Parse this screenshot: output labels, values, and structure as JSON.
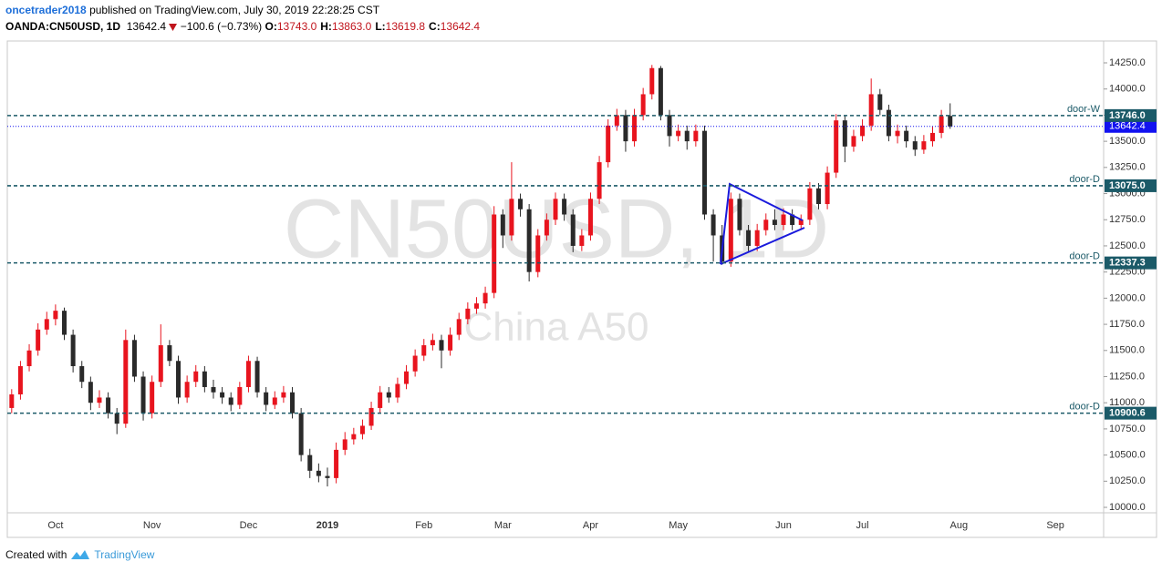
{
  "header": {
    "author": "oncetrader2018",
    "published": "published on TradingView.com, July 30, 2019 22:28:25 CST",
    "symbol": "OANDA:CN50USD, 1D",
    "last": "13642.4",
    "change": "−100.6 (−0.73%)",
    "ohlc": [
      {
        "label": "O:",
        "value": "13743.0"
      },
      {
        "label": "H:",
        "value": "13863.0"
      },
      {
        "label": "L:",
        "value": "13619.8"
      },
      {
        "label": "C:",
        "value": "13642.4"
      }
    ]
  },
  "footer": {
    "prefix": "Created with",
    "brand": "TradingView"
  },
  "chart_data": {
    "type": "candlestick",
    "watermark": "CN50USD, 1D",
    "description": "China A50",
    "categories": [
      null,
      null,
      null,
      null,
      null,
      "Oct",
      null,
      null,
      null,
      null,
      null,
      null,
      null,
      null,
      null,
      null,
      "Nov",
      null,
      null,
      null,
      null,
      null,
      null,
      null,
      null,
      null,
      null,
      "Dec",
      null,
      null,
      null,
      null,
      null,
      null,
      null,
      null,
      "2019",
      null,
      null,
      null,
      null,
      null,
      null,
      null,
      null,
      null,
      null,
      "Feb",
      null,
      null,
      null,
      null,
      null,
      null,
      null,
      null,
      "Mar",
      null,
      null,
      null,
      null,
      null,
      null,
      null,
      null,
      null,
      "Apr",
      null,
      null,
      null,
      null,
      null,
      null,
      null,
      null,
      null,
      "May",
      null,
      null,
      null,
      null,
      null,
      null,
      null,
      null,
      null,
      null,
      null,
      "Jun",
      null,
      null,
      null,
      null,
      null,
      null,
      null,
      null,
      "Jul",
      null,
      null,
      null,
      null,
      null,
      null,
      null,
      null,
      null,
      null,
      "Aug",
      null,
      null,
      null,
      null,
      null,
      null,
      null,
      null,
      null,
      null,
      "Sep",
      null,
      null,
      null,
      null,
      null
    ],
    "open": [
      10950,
      11080,
      11350,
      11500,
      11700,
      11800,
      11880,
      11650,
      11350,
      11200,
      11000,
      11050,
      10900,
      10800,
      11600,
      11250,
      10900,
      11200,
      11550,
      11400,
      11050,
      11200,
      11300,
      11150,
      11100,
      11050,
      10980,
      11150,
      11400,
      11100,
      10980,
      11050,
      11100,
      10900,
      10500,
      10350,
      10300,
      10280,
      10550,
      10650,
      10700,
      10780,
      10950,
      11100,
      11050,
      11180,
      11300,
      11450,
      11550,
      11600,
      11500,
      11650,
      11800,
      11900,
      11950,
      12050,
      12800,
      12600,
      12950,
      12850,
      12250,
      12600,
      12750,
      12950,
      12800,
      12500,
      12600,
      12950,
      13300,
      13650,
      13750,
      13500,
      13750,
      13950,
      14200,
      13750,
      13550,
      13600,
      13500,
      13600,
      12800,
      12600,
      12350,
      12950,
      12650,
      12500,
      12650,
      12750,
      12700,
      12800,
      12700,
      12750,
      13050,
      12900,
      13200,
      13700,
      13450,
      13550,
      13650,
      13950,
      13800,
      13550,
      13600,
      13500,
      13420,
      13500,
      13580,
      13743,
      null,
      null,
      null,
      null,
      null,
      null,
      null,
      null,
      null,
      null,
      null,
      null,
      null,
      null,
      null,
      null,
      null
    ],
    "high": [
      11130,
      11400,
      11560,
      11760,
      11870,
      11940,
      11910,
      11700,
      11400,
      11250,
      11120,
      11100,
      10950,
      11700,
      11650,
      11300,
      11260,
      11750,
      11600,
      11450,
      11260,
      11360,
      11350,
      11220,
      11150,
      11100,
      11200,
      11450,
      11440,
      11150,
      11110,
      11160,
      11150,
      10950,
      10560,
      10420,
      10380,
      10620,
      10720,
      10760,
      10840,
      11010,
      11160,
      11150,
      11240,
      11360,
      11510,
      11610,
      11660,
      11650,
      11720,
      11860,
      11960,
      12010,
      12110,
      12880,
      12850,
      13300,
      13000,
      12900,
      12660,
      12810,
      13010,
      13000,
      12850,
      12660,
      13010,
      13360,
      13710,
      13810,
      13800,
      13810,
      14010,
      14230,
      14220,
      13800,
      13660,
      13650,
      13660,
      13650,
      12850,
      12700,
      13010,
      13000,
      12700,
      12710,
      12810,
      12850,
      12860,
      12850,
      12800,
      13110,
      13100,
      13260,
      13760,
      13750,
      13610,
      13710,
      14100,
      14000,
      13850,
      13660,
      13650,
      13550,
      13560,
      13640,
      13800,
      13863,
      null,
      null,
      null,
      null,
      null,
      null,
      null,
      null,
      null,
      null,
      null,
      null,
      null,
      null,
      null,
      null,
      null
    ],
    "low": [
      10900,
      11030,
      11300,
      11450,
      11650,
      11740,
      11600,
      11290,
      11140,
      10930,
      10950,
      10850,
      10700,
      10760,
      11200,
      10830,
      10850,
      11150,
      11350,
      10990,
      11000,
      11150,
      11100,
      11040,
      10990,
      10920,
      10940,
      11100,
      11050,
      10920,
      10940,
      11000,
      10850,
      10440,
      10280,
      10240,
      10200,
      10230,
      10500,
      10600,
      10650,
      10740,
      10900,
      11000,
      11000,
      11130,
      11250,
      11400,
      11500,
      11330,
      11450,
      11600,
      11750,
      11850,
      11900,
      12000,
      12480,
      12550,
      12780,
      12160,
      12200,
      12550,
      12700,
      12740,
      12440,
      12450,
      12550,
      12900,
      13250,
      13600,
      13400,
      13450,
      13700,
      13900,
      13700,
      13450,
      13500,
      13420,
      13450,
      12750,
      12350,
      12320,
      12300,
      12600,
      12450,
      12450,
      12600,
      12650,
      12650,
      12650,
      12650,
      12700,
      12850,
      12850,
      13150,
      13300,
      13400,
      13500,
      13600,
      13750,
      13500,
      13480,
      13440,
      13360,
      13380,
      13450,
      13530,
      13619.8,
      null,
      null,
      null,
      null,
      null,
      null,
      null,
      null,
      null,
      null,
      null,
      null,
      null,
      null,
      null,
      null,
      null
    ],
    "close": [
      11080,
      11350,
      11500,
      11700,
      11800,
      11880,
      11650,
      11350,
      11200,
      11000,
      11050,
      10900,
      10800,
      11600,
      11250,
      10900,
      11200,
      11550,
      11400,
      11050,
      11200,
      11300,
      11150,
      11100,
      11050,
      10980,
      11150,
      11400,
      11100,
      10980,
      11050,
      11100,
      10900,
      10500,
      10350,
      10300,
      10280,
      10550,
      10650,
      10700,
      10780,
      10950,
      11100,
      11050,
      11180,
      11300,
      11450,
      11550,
      11600,
      11500,
      11650,
      11800,
      11900,
      11950,
      12050,
      12800,
      12600,
      12950,
      12850,
      12250,
      12600,
      12750,
      12950,
      12800,
      12500,
      12600,
      12950,
      13300,
      13650,
      13750,
      13500,
      13750,
      13950,
      14200,
      13750,
      13550,
      13600,
      13500,
      13600,
      12800,
      12600,
      12350,
      12950,
      12650,
      12500,
      12650,
      12750,
      12700,
      12800,
      12700,
      12750,
      13050,
      12900,
      13200,
      13700,
      13450,
      13550,
      13650,
      13950,
      13800,
      13550,
      13600,
      13500,
      13420,
      13500,
      13580,
      13740,
      13642.4,
      null,
      null,
      null,
      null,
      null,
      null,
      null,
      null,
      null,
      null,
      null,
      null,
      null,
      null,
      null,
      null,
      null
    ],
    "up_color": "#e8141e",
    "down_color": "#2a2a2a",
    "ylim": [
      9948,
      14459
    ],
    "yticks": [
      {
        "value": 10000,
        "label": "10000.0"
      },
      {
        "value": 10250,
        "label": "10250.0"
      },
      {
        "value": 10500,
        "label": "10500.0"
      },
      {
        "value": 10750,
        "label": "10750.0"
      },
      {
        "value": 11000,
        "label": "11000.0"
      },
      {
        "value": 11250,
        "label": "11250.0"
      },
      {
        "value": 11500,
        "label": "11500.0"
      },
      {
        "value": 11750,
        "label": "11750.0"
      },
      {
        "value": 12000,
        "label": "12000.0"
      },
      {
        "value": 12250,
        "label": "12250.0"
      },
      {
        "value": 12500,
        "label": "12500.0"
      },
      {
        "value": 12750,
        "label": "12750.0"
      },
      {
        "value": 13000,
        "label": "13000.0"
      },
      {
        "value": 13250,
        "label": "13250.0"
      },
      {
        "value": 13500,
        "label": "13500.0"
      },
      {
        "value": 13750,
        "label": "13750.0"
      },
      {
        "value": 14000,
        "label": "14000.0"
      },
      {
        "value": 14250,
        "label": "14250.0"
      }
    ],
    "grid": false,
    "levels": [
      {
        "name": "door-W",
        "value": 13746,
        "label": "13746.0"
      },
      {
        "name": "door-D",
        "value": 13075,
        "label": "13075.0"
      },
      {
        "name": "door-D",
        "value": 12337.3
      },
      {
        "name": "door-D",
        "value": 10900.6
      }
    ],
    "level_color": "#1b5a68",
    "last_price": 13642.4,
    "last_color": "#1212f0"
  }
}
